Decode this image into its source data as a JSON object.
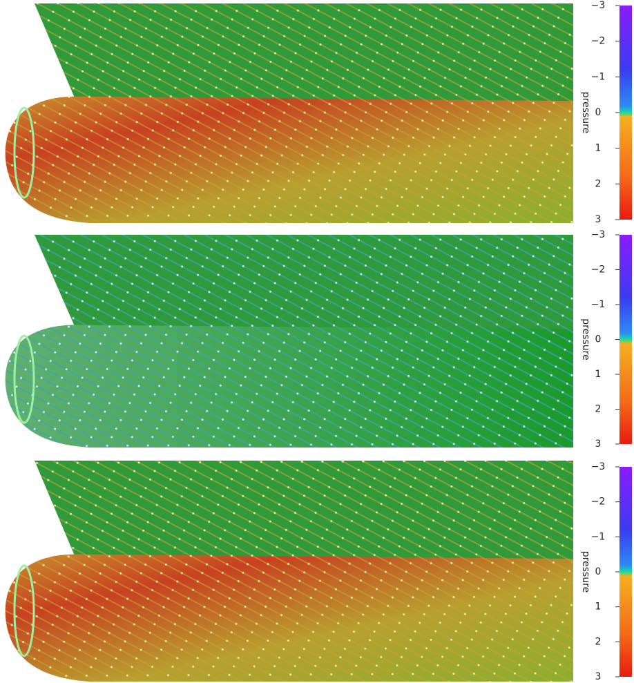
{
  "panels": [
    {
      "colorbar": {
        "label": "pressure",
        "range": [
          -3,
          3
        ],
        "ticks": [
          {
            "value": -3,
            "label": "−3"
          },
          {
            "value": -2,
            "label": "−2"
          },
          {
            "value": -1,
            "label": "−1"
          },
          0,
          1,
          2,
          3
        ]
      }
    },
    {
      "colorbar": {
        "label": "pressure",
        "range": [
          -3,
          3
        ],
        "ticks": [
          {
            "value": -3,
            "label": "−3"
          },
          {
            "value": -2,
            "label": "−2"
          },
          {
            "value": -1,
            "label": "−1"
          },
          0,
          1,
          2,
          3
        ]
      }
    },
    {
      "colorbar": {
        "label": "pressure",
        "range": [
          -3,
          3
        ],
        "ticks": [
          {
            "value": -3,
            "label": "−3"
          },
          {
            "value": -2,
            "label": "−2"
          },
          {
            "value": -1,
            "label": "−1"
          },
          0,
          1,
          2,
          3
        ]
      }
    }
  ]
}
